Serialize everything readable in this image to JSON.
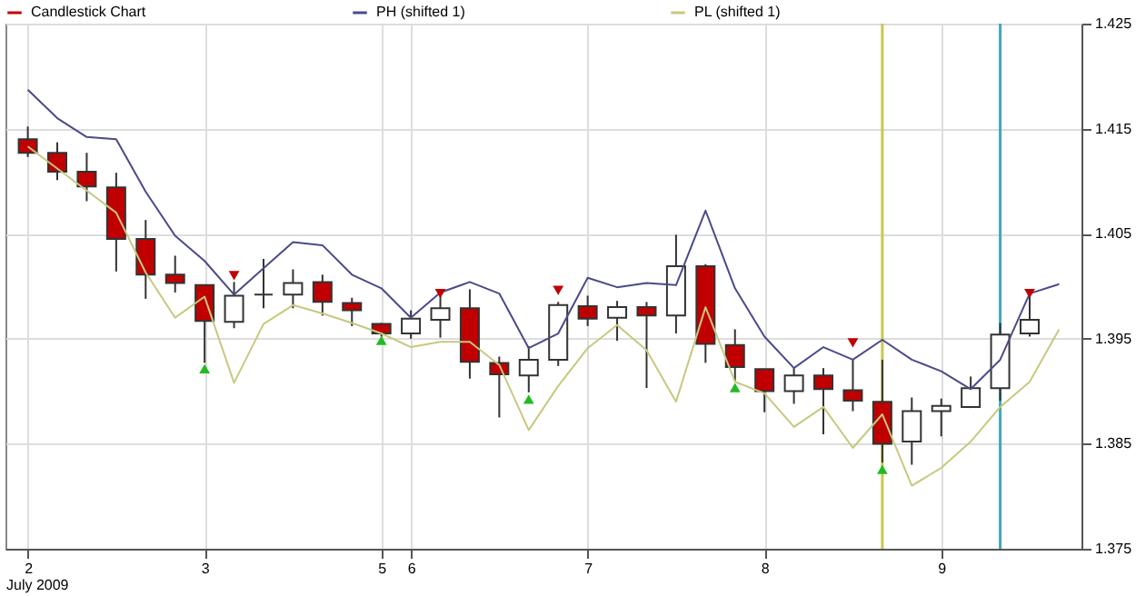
{
  "chart_data": {
    "type": "candlestick",
    "xlabel": "July 2009",
    "categories": [
      "2",
      null,
      null,
      null,
      null,
      null,
      "3",
      null,
      null,
      null,
      null,
      null,
      "5",
      "6",
      null,
      null,
      null,
      null,
      null,
      "7",
      null,
      null,
      null,
      null,
      null,
      "8",
      null,
      null,
      null,
      null,
      null,
      "9",
      null,
      null,
      null,
      null
    ],
    "ylim": [
      1.375,
      1.425
    ],
    "yticks": [
      1.375,
      1.385,
      1.395,
      1.405,
      1.415,
      1.425
    ],
    "grid": true,
    "legend": "top",
    "series": [
      {
        "name": "Candlestick Chart",
        "color": "#c00000",
        "colors": [
          "#c00000",
          "#c00000",
          "#c00000",
          "#c00000",
          "#c00000",
          "#c00000",
          "#c00000",
          "#ffffff",
          "#333333",
          "#ffffff",
          "#c00000",
          "#c00000",
          "#c00000",
          "#ffffff",
          "#ffffff",
          "#c00000",
          "#c00000",
          "#ffffff",
          "#ffffff",
          "#c00000",
          "#ffffff",
          "#c00000",
          "#ffffff",
          "#c00000",
          "#c00000",
          "#c00000",
          "#ffffff",
          "#c00000",
          "#c00000",
          "#c00000",
          "#ffffff",
          "#ffffff",
          "#ffffff",
          "#ffffff",
          "#ffffff",
          null
        ],
        "ohlc": [
          [
            1.414,
            1.4152,
            1.4123,
            1.4127
          ],
          [
            1.4127,
            1.4137,
            1.4101,
            1.4109
          ],
          [
            1.4109,
            1.4127,
            1.4081,
            1.4095
          ],
          [
            1.4094,
            1.4108,
            1.4014,
            1.4045
          ],
          [
            1.4045,
            1.4063,
            1.3988,
            1.4011
          ],
          [
            1.4011,
            1.4029,
            1.3994,
            1.4003
          ],
          [
            1.4001,
            1.4001,
            1.3927,
            1.3967
          ],
          [
            1.3966,
            1.4004,
            1.396,
            1.3991
          ],
          [
            1.3992,
            1.4026,
            1.3979,
            1.3992
          ],
          [
            1.3992,
            1.4016,
            1.3979,
            1.4003
          ],
          [
            1.4004,
            1.4011,
            1.3972,
            1.3985
          ],
          [
            1.3984,
            1.3989,
            1.3962,
            1.3977
          ],
          [
            1.3964,
            1.3965,
            1.3952,
            1.3955
          ],
          [
            1.3955,
            1.3977,
            1.395,
            1.3969
          ],
          [
            1.3968,
            1.3992,
            1.3951,
            1.3979
          ],
          [
            1.3979,
            1.3997,
            1.3912,
            1.3928
          ],
          [
            1.3927,
            1.3933,
            1.3875,
            1.3916
          ],
          [
            1.3915,
            1.3943,
            1.3899,
            1.393
          ],
          [
            1.393,
            1.3985,
            1.3924,
            1.3982
          ],
          [
            1.3981,
            1.3991,
            1.3962,
            1.3969
          ],
          [
            1.397,
            1.3986,
            1.3948,
            1.398
          ],
          [
            1.398,
            1.3985,
            1.3903,
            1.3972
          ],
          [
            1.3972,
            1.4049,
            1.3955,
            1.4019
          ],
          [
            1.4019,
            1.4021,
            1.3927,
            1.3945
          ],
          [
            1.3944,
            1.3959,
            1.391,
            1.3923
          ],
          [
            1.3921,
            1.3921,
            1.388,
            1.39
          ],
          [
            1.39,
            1.3922,
            1.3888,
            1.3915
          ],
          [
            1.3915,
            1.3922,
            1.3859,
            1.3902
          ],
          [
            1.3901,
            1.393,
            1.3881,
            1.3891
          ],
          [
            1.389,
            1.393,
            1.3832,
            1.385
          ],
          [
            1.3852,
            1.3894,
            1.383,
            1.3881
          ],
          [
            1.3881,
            1.3893,
            1.3857,
            1.3886
          ],
          [
            1.3885,
            1.3914,
            1.3884,
            1.3903
          ],
          [
            1.3903,
            1.3965,
            1.3891,
            1.3954
          ],
          [
            1.3955,
            1.3992,
            1.3952,
            1.3968
          ],
          null
        ]
      },
      {
        "name": "PH (shifted 1)",
        "type": "line",
        "color": "#4a4a8a",
        "values": [
          1.4187,
          1.416,
          1.4142,
          1.414,
          1.409,
          1.4048,
          1.4024,
          1.3992,
          1.4017,
          1.4042,
          1.4039,
          1.4011,
          1.3998,
          1.397,
          1.3994,
          1.4004,
          1.3993,
          1.3941,
          1.3955,
          1.4008,
          1.3999,
          1.4003,
          1.4001,
          1.4072,
          1.3998,
          1.3952,
          1.3922,
          1.3942,
          1.393,
          1.3949,
          1.393,
          1.3919,
          1.3902,
          1.393,
          1.3993,
          1.4002
        ]
      },
      {
        "name": "PL (shifted 1)",
        "type": "line",
        "color": "#c8c880",
        "values": [
          1.4133,
          1.4112,
          1.4091,
          1.407,
          1.4013,
          1.397,
          1.399,
          1.3908,
          1.3964,
          1.3982,
          1.3974,
          1.3965,
          1.3955,
          1.3942,
          1.3947,
          1.3947,
          1.3925,
          1.3863,
          1.3905,
          1.3941,
          1.3963,
          1.3939,
          1.389,
          1.398,
          1.3909,
          1.3898,
          1.3866,
          1.3885,
          1.3846,
          1.3878,
          1.381,
          1.3827,
          1.3852,
          1.3885,
          1.3909,
          1.3959
        ]
      },
      {
        "type": "scatter",
        "marker": "triangle-down",
        "color": "#c00000",
        "values": [
          null,
          null,
          null,
          null,
          null,
          null,
          null,
          1.401,
          null,
          null,
          null,
          null,
          null,
          null,
          1.3993,
          null,
          null,
          null,
          1.3996,
          null,
          null,
          null,
          null,
          null,
          null,
          null,
          null,
          null,
          1.3946,
          null,
          null,
          null,
          null,
          null,
          1.3993,
          null
        ]
      },
      {
        "type": "scatter",
        "marker": "triangle",
        "color": "#22bb22",
        "values": [
          null,
          null,
          null,
          null,
          null,
          null,
          1.392,
          null,
          null,
          null,
          null,
          null,
          1.3947,
          null,
          null,
          null,
          null,
          1.3891,
          null,
          null,
          null,
          null,
          null,
          null,
          1.3902,
          null,
          null,
          null,
          null,
          1.3824,
          null,
          null,
          null,
          null,
          null,
          null
        ]
      }
    ]
  }
}
